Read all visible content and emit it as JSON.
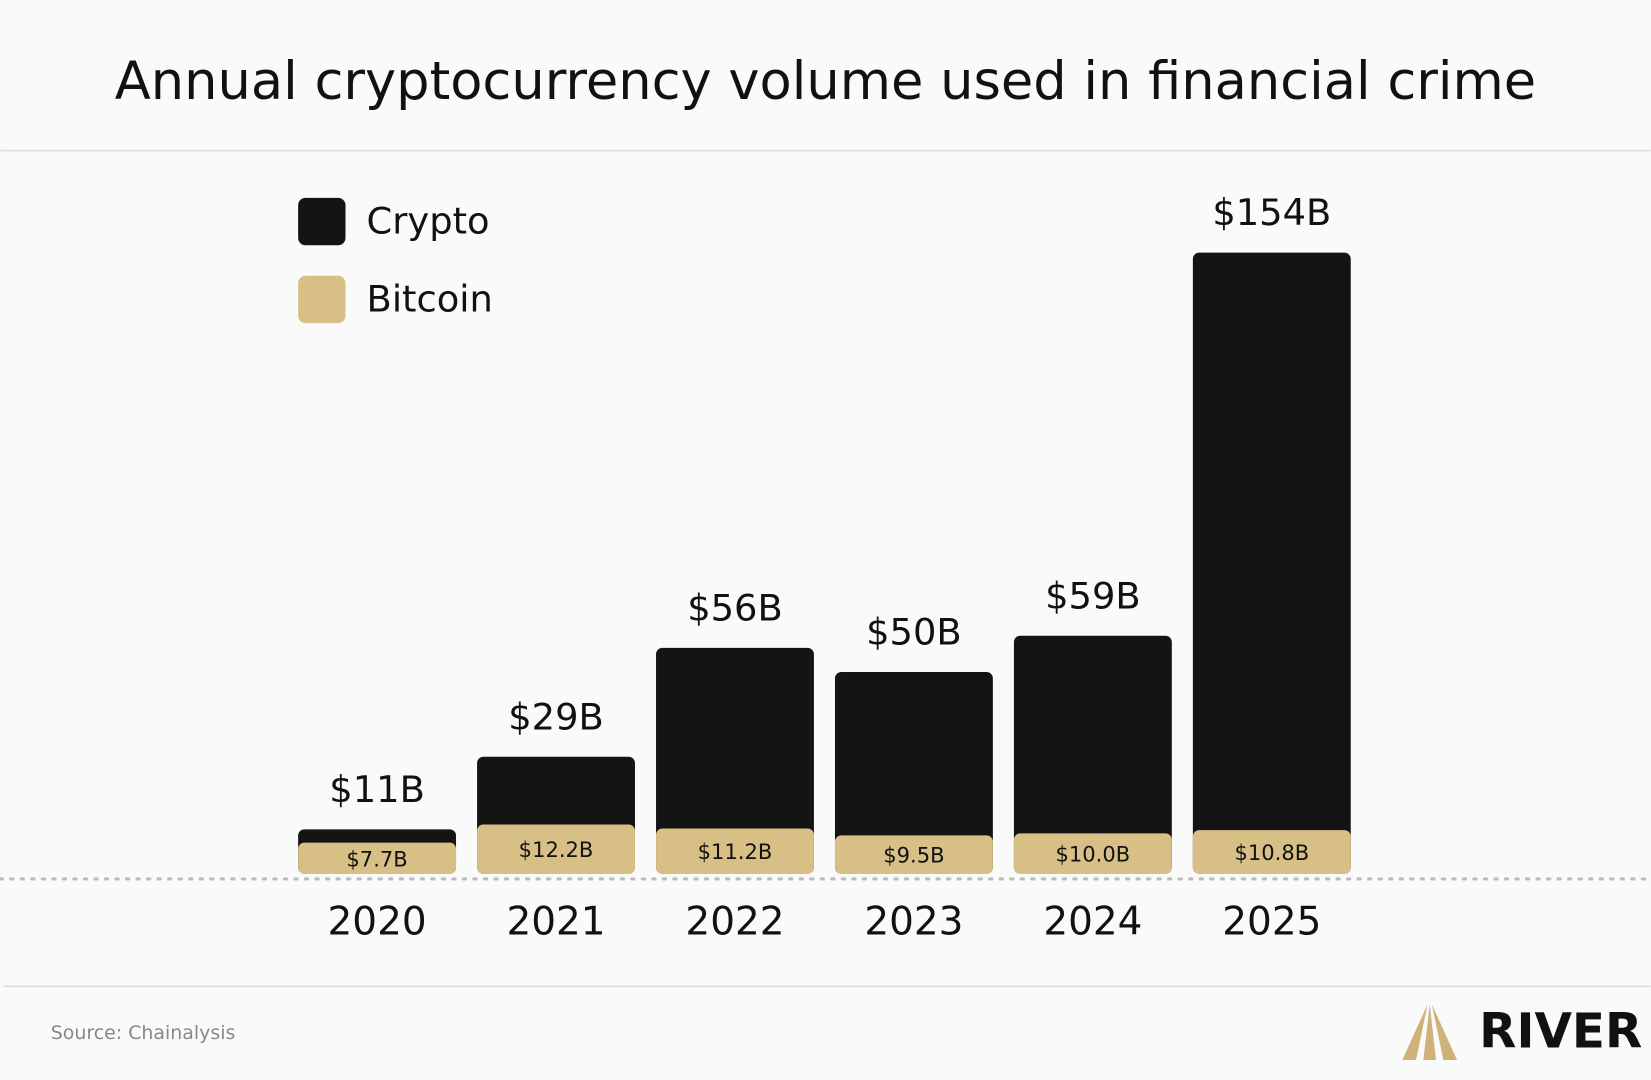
{
  "chart_data": {
    "type": "bar",
    "overlay": true,
    "title": "Annual cryptocurrency volume used in financial crime",
    "categories": [
      "2020",
      "2021",
      "2022",
      "2023",
      "2024",
      "2025"
    ],
    "series": [
      {
        "name": "Crypto",
        "color": "#141414",
        "values": [
          11,
          29,
          56,
          50,
          59,
          154
        ],
        "value_labels": [
          "$11B",
          "$29B",
          "$56B",
          "$50B",
          "$59B",
          "$154B"
        ]
      },
      {
        "name": "Bitcoin",
        "color": "#d8bf86",
        "values": [
          7.7,
          12.2,
          11.2,
          9.5,
          10.0,
          10.8
        ],
        "value_labels": [
          "$7.7B",
          "$12.2B",
          "$11.2B",
          "$9.5B",
          "$10.0B",
          "$10.8B"
        ]
      }
    ],
    "source": "Source: Chainalysis",
    "logo": "RIVER"
  }
}
